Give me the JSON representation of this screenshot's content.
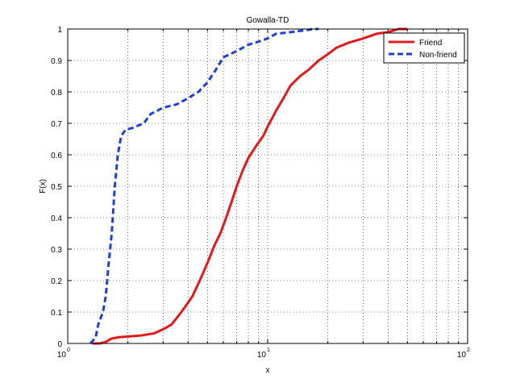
{
  "chart_data": {
    "type": "line",
    "title": "Gowalla-TD",
    "xlabel": "x",
    "ylabel": "F(x)",
    "xscale": "log",
    "xlim": [
      1,
      100
    ],
    "ylim": [
      0,
      1
    ],
    "grid": true,
    "legend_position": "top-right",
    "x_ticks": [
      {
        "base": "10",
        "exp": "0"
      },
      {
        "base": "10",
        "exp": "1"
      },
      {
        "base": "10",
        "exp": "2"
      }
    ],
    "y_ticks": [
      "0",
      "0.1",
      "0.2",
      "0.3",
      "0.4",
      "0.5",
      "0.6",
      "0.7",
      "0.8",
      "0.9",
      "1"
    ],
    "series": [
      {
        "name": "Friend",
        "color": "#e31a1c",
        "style": "solid",
        "points": [
          [
            1.33,
            0.0
          ],
          [
            1.45,
            0.0
          ],
          [
            1.55,
            0.005
          ],
          [
            1.65,
            0.015
          ],
          [
            1.8,
            0.02
          ],
          [
            2.0,
            0.022
          ],
          [
            2.3,
            0.025
          ],
          [
            2.7,
            0.032
          ],
          [
            3.0,
            0.045
          ],
          [
            3.3,
            0.06
          ],
          [
            3.6,
            0.09
          ],
          [
            3.9,
            0.12
          ],
          [
            4.2,
            0.15
          ],
          [
            4.5,
            0.19
          ],
          [
            4.8,
            0.23
          ],
          [
            5.1,
            0.27
          ],
          [
            5.4,
            0.31
          ],
          [
            5.8,
            0.35
          ],
          [
            6.2,
            0.4
          ],
          [
            6.6,
            0.45
          ],
          [
            7.0,
            0.5
          ],
          [
            7.5,
            0.55
          ],
          [
            8.0,
            0.59
          ],
          [
            8.8,
            0.63
          ],
          [
            9.5,
            0.66
          ],
          [
            10.0,
            0.69
          ],
          [
            11.0,
            0.74
          ],
          [
            12.0,
            0.78
          ],
          [
            13.0,
            0.82
          ],
          [
            14.5,
            0.85
          ],
          [
            16.0,
            0.87
          ],
          [
            18.0,
            0.9
          ],
          [
            20.0,
            0.92
          ],
          [
            22.0,
            0.94
          ],
          [
            25.0,
            0.955
          ],
          [
            30.0,
            0.97
          ],
          [
            35.0,
            0.985
          ],
          [
            40.0,
            0.99
          ],
          [
            45.0,
            1.0
          ],
          [
            50.0,
            1.0
          ]
        ]
      },
      {
        "name": "Non-friend",
        "color": "#1f3fd6",
        "style": "dashed",
        "points": [
          [
            1.3,
            0.0
          ],
          [
            1.38,
            0.02
          ],
          [
            1.42,
            0.06
          ],
          [
            1.5,
            0.1
          ],
          [
            1.55,
            0.15
          ],
          [
            1.6,
            0.25
          ],
          [
            1.66,
            0.35
          ],
          [
            1.72,
            0.5
          ],
          [
            1.78,
            0.6
          ],
          [
            1.85,
            0.66
          ],
          [
            1.95,
            0.68
          ],
          [
            2.1,
            0.685
          ],
          [
            2.4,
            0.7
          ],
          [
            2.6,
            0.73
          ],
          [
            2.8,
            0.74
          ],
          [
            3.0,
            0.75
          ],
          [
            3.5,
            0.76
          ],
          [
            4.0,
            0.78
          ],
          [
            4.5,
            0.8
          ],
          [
            5.0,
            0.83
          ],
          [
            5.5,
            0.87
          ],
          [
            6.0,
            0.91
          ],
          [
            7.0,
            0.93
          ],
          [
            8.0,
            0.95
          ],
          [
            9.0,
            0.96
          ],
          [
            10.0,
            0.97
          ],
          [
            11.0,
            0.985
          ],
          [
            13.0,
            0.99
          ],
          [
            15.0,
            0.995
          ],
          [
            17.0,
            1.0
          ],
          [
            18.0,
            1.0
          ]
        ]
      }
    ]
  }
}
